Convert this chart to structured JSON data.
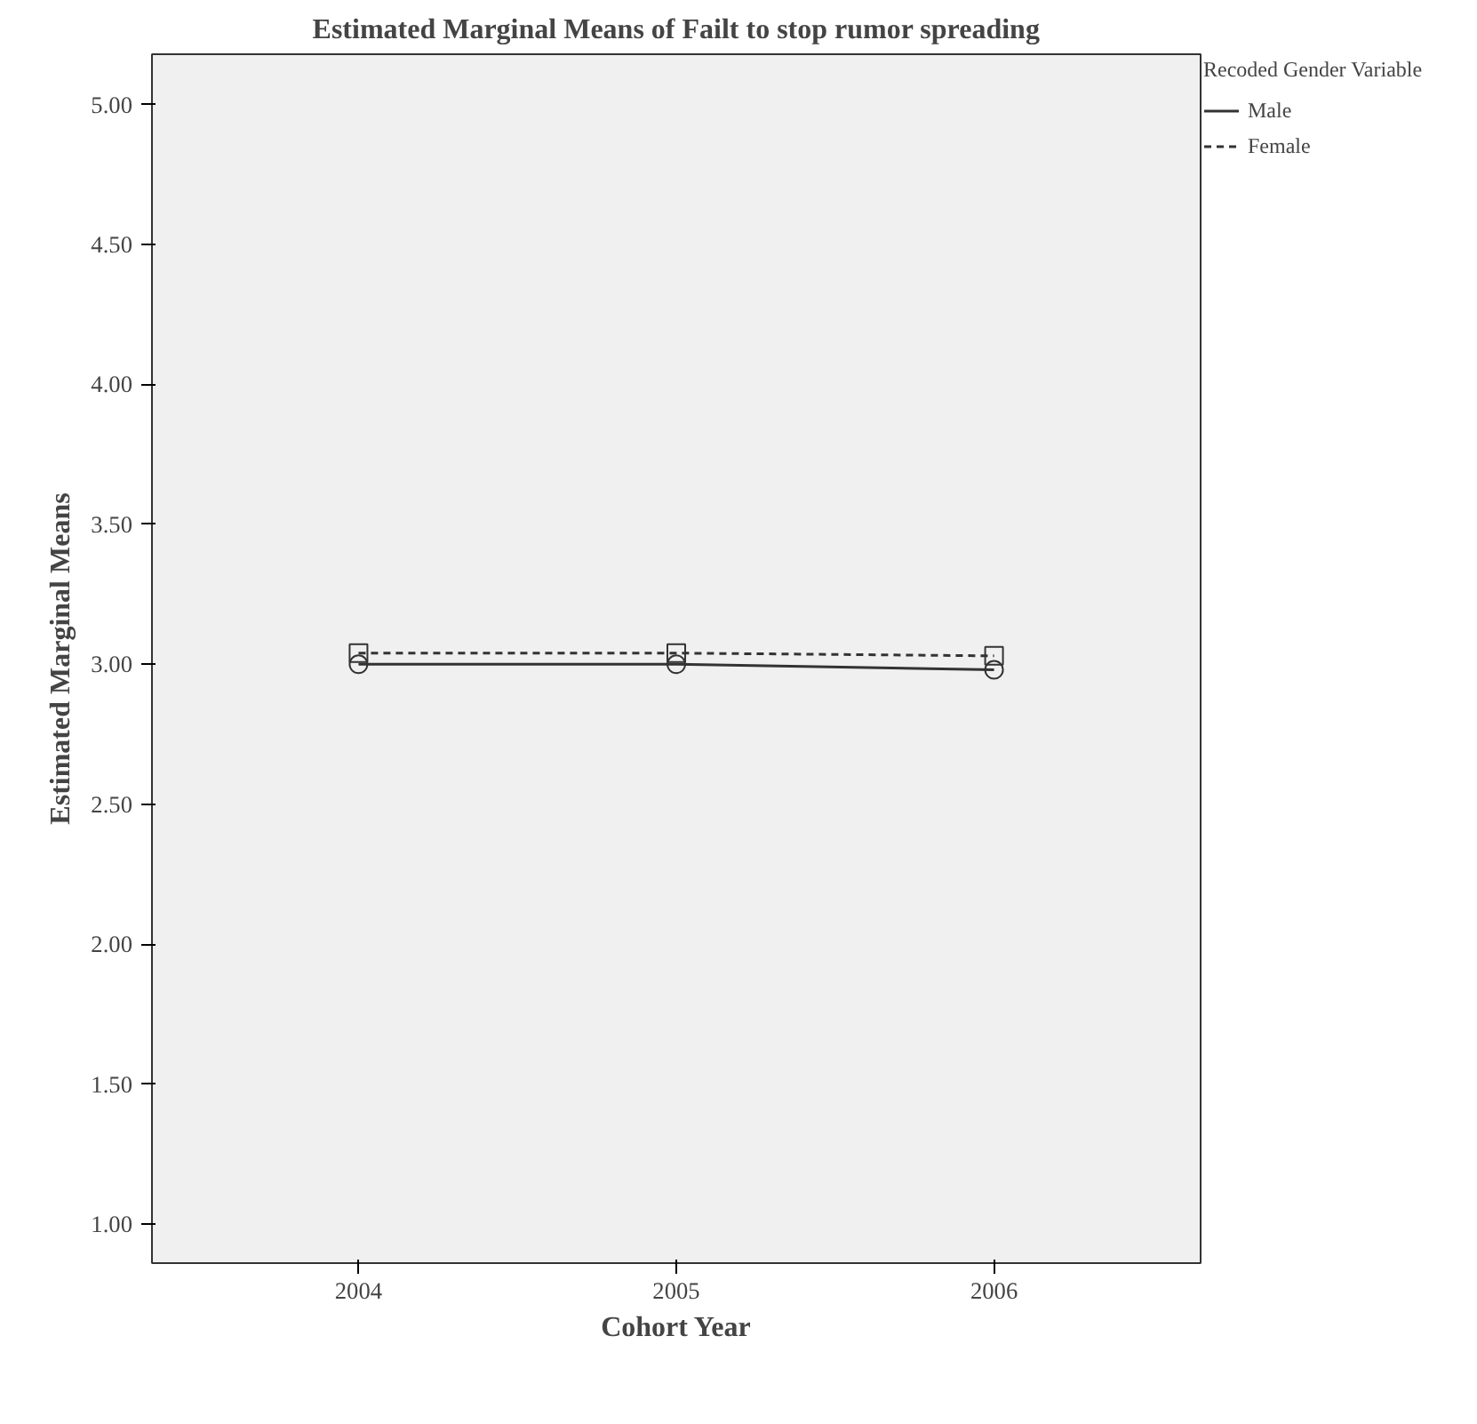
{
  "chart_data": {
    "type": "line",
    "title": "Estimated Marginal Means of Failt to stop rumor spreading",
    "xlabel": "Cohort Year",
    "ylabel": "Estimated Marginal Means",
    "legend_title": "Recoded Gender Variable",
    "x": [
      2004,
      2005,
      2006
    ],
    "series": [
      {
        "name": "Male",
        "color": "#333333",
        "values": [
          3.0,
          3.0,
          2.98
        ],
        "marker": "circle",
        "line_style": "solid"
      },
      {
        "name": "Female",
        "color": "#333333",
        "values": [
          3.04,
          3.04,
          3.03
        ],
        "marker": "square",
        "line_style": "dashed"
      }
    ],
    "xlim": [
      2003.35,
      2006.65
    ],
    "xticks": [
      2004,
      2005,
      2006
    ],
    "ylim": [
      0.86,
      5.18
    ],
    "yticks": [
      {
        "value": 1,
        "label": "1.00"
      },
      {
        "value": 1.5,
        "label": "1.50"
      },
      {
        "value": 2,
        "label": "2.00"
      },
      {
        "value": 2.5,
        "label": "2.50"
      },
      {
        "value": 3,
        "label": "3.00"
      },
      {
        "value": 3.5,
        "label": "3.50"
      },
      {
        "value": 4,
        "label": "4.00"
      },
      {
        "value": 4.5,
        "label": "4.50"
      },
      {
        "value": 5,
        "label": "5.00"
      }
    ],
    "grid": false,
    "legend": "top right"
  }
}
